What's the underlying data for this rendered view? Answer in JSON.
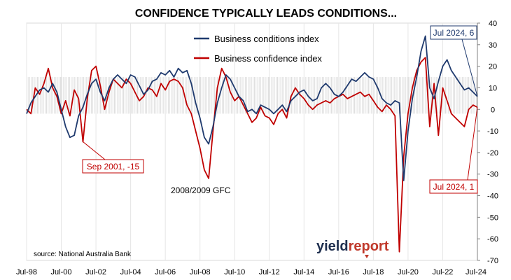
{
  "chart_data": {
    "type": "line",
    "title": "CONFIDENCE TYPICALLY LEADS CONDITIONS...",
    "x_tick_labels": [
      "Jul-98",
      "Jul-00",
      "Jul-02",
      "Jul-04",
      "Jul-06",
      "Jul-08",
      "Jul-10",
      "Jul-12",
      "Jul-14",
      "Jul-16",
      "Jul-18",
      "Jul-20",
      "Jul-22",
      "Jul-24"
    ],
    "ylim": [
      -70,
      40
    ],
    "y_ticks": [
      40,
      30,
      20,
      10,
      0,
      -10,
      -20,
      -30,
      -40,
      -50,
      -60,
      -70
    ],
    "grid": "vertical",
    "legend": "top-center",
    "neutral_band": [
      -2,
      15
    ],
    "series": [
      {
        "name": "Business conditions index",
        "color": "#1f3a6e",
        "points": [
          [
            1998.5,
            -2
          ],
          [
            1998.75,
            3
          ],
          [
            1999.0,
            6
          ],
          [
            1999.25,
            9
          ],
          [
            1999.5,
            10
          ],
          [
            1999.75,
            8
          ],
          [
            2000.0,
            12
          ],
          [
            2000.25,
            8
          ],
          [
            2000.5,
            0
          ],
          [
            2000.75,
            -8
          ],
          [
            2001.0,
            -13
          ],
          [
            2001.25,
            -12
          ],
          [
            2001.5,
            -3
          ],
          [
            2001.75,
            1
          ],
          [
            2002.0,
            7
          ],
          [
            2002.25,
            12
          ],
          [
            2002.5,
            14
          ],
          [
            2002.75,
            8
          ],
          [
            2003.0,
            4
          ],
          [
            2003.25,
            10
          ],
          [
            2003.5,
            14
          ],
          [
            2003.75,
            16
          ],
          [
            2004.0,
            14
          ],
          [
            2004.25,
            12
          ],
          [
            2004.5,
            16
          ],
          [
            2004.75,
            15
          ],
          [
            2005.0,
            11
          ],
          [
            2005.25,
            7
          ],
          [
            2005.5,
            9
          ],
          [
            2005.75,
            13
          ],
          [
            2006.0,
            14
          ],
          [
            2006.25,
            17
          ],
          [
            2006.5,
            16
          ],
          [
            2006.75,
            18
          ],
          [
            2007.0,
            15
          ],
          [
            2007.25,
            19
          ],
          [
            2007.5,
            17
          ],
          [
            2007.75,
            18
          ],
          [
            2008.0,
            12
          ],
          [
            2008.25,
            3
          ],
          [
            2008.5,
            -4
          ],
          [
            2008.75,
            -13
          ],
          [
            2009.0,
            -16
          ],
          [
            2009.25,
            -8
          ],
          [
            2009.5,
            3
          ],
          [
            2009.75,
            10
          ],
          [
            2010.0,
            16
          ],
          [
            2010.25,
            14
          ],
          [
            2010.5,
            10
          ],
          [
            2010.75,
            6
          ],
          [
            2011.0,
            4
          ],
          [
            2011.25,
            -1
          ],
          [
            2011.5,
            0
          ],
          [
            2011.75,
            -2
          ],
          [
            2012.0,
            2
          ],
          [
            2012.25,
            1
          ],
          [
            2012.5,
            0
          ],
          [
            2012.75,
            -2
          ],
          [
            2013.0,
            0
          ],
          [
            2013.25,
            2
          ],
          [
            2013.5,
            -1
          ],
          [
            2013.75,
            4
          ],
          [
            2014.0,
            6
          ],
          [
            2014.25,
            8
          ],
          [
            2014.5,
            9
          ],
          [
            2014.75,
            6
          ],
          [
            2015.0,
            4
          ],
          [
            2015.25,
            5
          ],
          [
            2015.5,
            10
          ],
          [
            2015.75,
            12
          ],
          [
            2016.0,
            10
          ],
          [
            2016.25,
            7
          ],
          [
            2016.5,
            6
          ],
          [
            2016.75,
            8
          ],
          [
            2017.0,
            11
          ],
          [
            2017.25,
            14
          ],
          [
            2017.5,
            13
          ],
          [
            2017.75,
            15
          ],
          [
            2018.0,
            17
          ],
          [
            2018.25,
            15
          ],
          [
            2018.5,
            14
          ],
          [
            2018.75,
            10
          ],
          [
            2019.0,
            5
          ],
          [
            2019.25,
            3
          ],
          [
            2019.5,
            2
          ],
          [
            2019.75,
            4
          ],
          [
            2020.0,
            3
          ],
          [
            2020.25,
            -33
          ],
          [
            2020.5,
            -10
          ],
          [
            2020.75,
            5
          ],
          [
            2021.0,
            15
          ],
          [
            2021.25,
            27
          ],
          [
            2021.5,
            34
          ],
          [
            2021.75,
            10
          ],
          [
            2022.0,
            5
          ],
          [
            2022.25,
            13
          ],
          [
            2022.5,
            20
          ],
          [
            2022.75,
            23
          ],
          [
            2023.0,
            18
          ],
          [
            2023.25,
            15
          ],
          [
            2023.5,
            12
          ],
          [
            2023.75,
            9
          ],
          [
            2024.0,
            10
          ],
          [
            2024.25,
            8
          ],
          [
            2024.5,
            6
          ]
        ]
      },
      {
        "name": "Business confidence index",
        "color": "#c00000",
        "points": [
          [
            1998.5,
            0
          ],
          [
            1998.75,
            -2
          ],
          [
            1999.0,
            10
          ],
          [
            1999.25,
            7
          ],
          [
            1999.5,
            12
          ],
          [
            1999.75,
            19
          ],
          [
            2000.0,
            10
          ],
          [
            2000.25,
            6
          ],
          [
            2000.5,
            -2
          ],
          [
            2000.75,
            4
          ],
          [
            2001.0,
            -3
          ],
          [
            2001.25,
            9
          ],
          [
            2001.5,
            5
          ],
          [
            2001.75,
            -15
          ],
          [
            2002.0,
            5
          ],
          [
            2002.25,
            18
          ],
          [
            2002.5,
            20
          ],
          [
            2002.75,
            11
          ],
          [
            2003.0,
            0
          ],
          [
            2003.25,
            8
          ],
          [
            2003.5,
            14
          ],
          [
            2003.75,
            12
          ],
          [
            2004.0,
            10
          ],
          [
            2004.25,
            14
          ],
          [
            2004.5,
            12
          ],
          [
            2004.75,
            8
          ],
          [
            2005.0,
            4
          ],
          [
            2005.25,
            6
          ],
          [
            2005.5,
            10
          ],
          [
            2005.75,
            9
          ],
          [
            2006.0,
            6
          ],
          [
            2006.25,
            12
          ],
          [
            2006.5,
            9
          ],
          [
            2006.75,
            13
          ],
          [
            2007.0,
            14
          ],
          [
            2007.25,
            13
          ],
          [
            2007.5,
            10
          ],
          [
            2007.75,
            2
          ],
          [
            2008.0,
            -2
          ],
          [
            2008.25,
            -10
          ],
          [
            2008.5,
            -18
          ],
          [
            2008.75,
            -28
          ],
          [
            2009.0,
            -32
          ],
          [
            2009.25,
            -10
          ],
          [
            2009.5,
            10
          ],
          [
            2009.75,
            19
          ],
          [
            2010.0,
            15
          ],
          [
            2010.25,
            8
          ],
          [
            2010.5,
            4
          ],
          [
            2010.75,
            6
          ],
          [
            2011.0,
            2
          ],
          [
            2011.25,
            -2
          ],
          [
            2011.5,
            -6
          ],
          [
            2011.75,
            -4
          ],
          [
            2012.0,
            1
          ],
          [
            2012.25,
            -3
          ],
          [
            2012.5,
            -4
          ],
          [
            2012.75,
            -7
          ],
          [
            2013.0,
            -2
          ],
          [
            2013.25,
            0
          ],
          [
            2013.5,
            -4
          ],
          [
            2013.75,
            6
          ],
          [
            2014.0,
            10
          ],
          [
            2014.25,
            7
          ],
          [
            2014.5,
            5
          ],
          [
            2014.75,
            2
          ],
          [
            2015.0,
            0
          ],
          [
            2015.25,
            2
          ],
          [
            2015.5,
            3
          ],
          [
            2015.75,
            4
          ],
          [
            2016.0,
            3
          ],
          [
            2016.25,
            5
          ],
          [
            2016.5,
            6
          ],
          [
            2016.75,
            7
          ],
          [
            2017.0,
            5
          ],
          [
            2017.25,
            6
          ],
          [
            2017.5,
            7
          ],
          [
            2017.75,
            8
          ],
          [
            2018.0,
            6
          ],
          [
            2018.25,
            7
          ],
          [
            2018.5,
            4
          ],
          [
            2018.75,
            1
          ],
          [
            2019.0,
            -1
          ],
          [
            2019.25,
            2
          ],
          [
            2019.5,
            0
          ],
          [
            2019.75,
            -3
          ],
          [
            2020.0,
            -66
          ],
          [
            2020.25,
            -22
          ],
          [
            2020.5,
            -2
          ],
          [
            2020.75,
            10
          ],
          [
            2021.0,
            18
          ],
          [
            2021.25,
            22
          ],
          [
            2021.5,
            24
          ],
          [
            2021.75,
            -8
          ],
          [
            2022.0,
            12
          ],
          [
            2022.25,
            -12
          ],
          [
            2022.5,
            10
          ],
          [
            2022.75,
            4
          ],
          [
            2023.0,
            -2
          ],
          [
            2023.25,
            -4
          ],
          [
            2023.5,
            -6
          ],
          [
            2023.75,
            -8
          ],
          [
            2024.0,
            0
          ],
          [
            2024.25,
            2
          ],
          [
            2024.5,
            1
          ]
        ]
      }
    ],
    "annotations": {
      "sep2001": "Sep 2001, -15",
      "jul2024_conditions": "Jul 2024, 6",
      "jul2024_confidence": "Jul 2024, 1",
      "gfc": "2008/2009 GFC"
    },
    "source": "source: National Australia Bank",
    "logo": {
      "part1": "yield",
      "part2": "report"
    }
  }
}
